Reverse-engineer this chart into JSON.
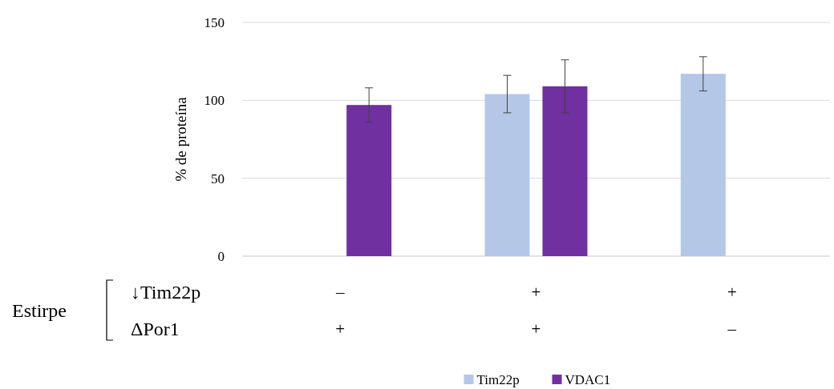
{
  "chart_data": {
    "type": "bar",
    "ylabel": "% de proteína",
    "categories": [
      "–\n+",
      "+\n+",
      "+\n–"
    ],
    "series": [
      {
        "name": "Tim22p",
        "color": "#b4c7e7",
        "values": [
          null,
          104,
          117
        ],
        "errors": [
          null,
          12,
          11
        ]
      },
      {
        "name": "VDAC1",
        "color": "#7030a0",
        "values": [
          97,
          109,
          null
        ],
        "errors": [
          11,
          17,
          null
        ]
      }
    ],
    "annotations": [
      "Estirpe",
      "↓Tim22p",
      "ΔPor1"
    ],
    "ylim": [
      0,
      150
    ],
    "yticks": [
      0,
      50,
      100,
      150
    ],
    "grid": "y",
    "legend": "bottom"
  }
}
